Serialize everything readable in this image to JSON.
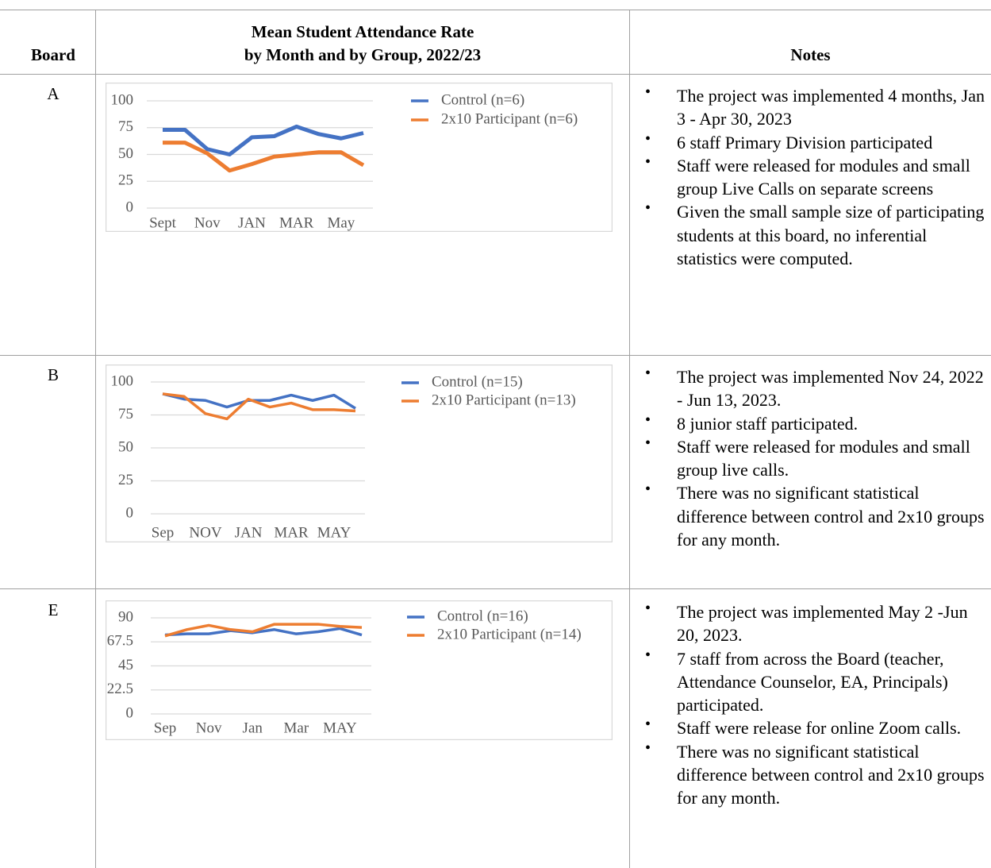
{
  "table": {
    "headers": {
      "board": "Board",
      "chart": [
        "Mean Student Attendance Rate",
        "by Month and by Group, 2022/23"
      ],
      "notes": "Notes"
    },
    "rows": [
      {
        "board": "A",
        "notes": [
          "The project was implemented 4 months, Jan 3 - Apr 30, 2023",
          "6 staff Primary Division participated",
          "Staff were released for modules and small group Live Calls on separate screens",
          "Given the small sample size of participating students at this board, no inferential statistics were computed."
        ]
      },
      {
        "board": "B",
        "notes": [
          "The project was implemented Nov 24, 2022 - Jun 13, 2023.",
          "8 junior staff participated.",
          "Staff were released for modules and small group live calls.",
          "There was no significant statistical difference between control and 2x10 groups for any month."
        ]
      },
      {
        "board": "E",
        "notes": [
          "The project was implemented May 2 -Jun 20, 2023.",
          "7 staff from across the Board (teacher, Attendance Counselor, EA, Principals) participated.",
          "Staff were release for online Zoom calls.",
          "There was no significant statistical difference between control and 2x10 groups for any month."
        ]
      }
    ]
  },
  "chart_data": [
    {
      "type": "line",
      "categories": [
        "Sept",
        null,
        "Nov",
        null,
        "JAN",
        null,
        "MAR",
        null,
        "May",
        null
      ],
      "series": [
        {
          "name": "Control (n=6)",
          "color": "#4472c4",
          "values": [
            73,
            73,
            55,
            50,
            66,
            67,
            76,
            69,
            65,
            70
          ]
        },
        {
          "name": "2x10 Participant (n=6)",
          "color": "#ed7d31",
          "values": [
            61,
            61,
            51,
            35,
            41,
            48,
            50,
            52,
            52,
            40
          ]
        }
      ],
      "ylim": [
        0,
        100
      ],
      "yticks": [
        0,
        25,
        50,
        75,
        100
      ],
      "grid": true,
      "legend": "top-right"
    },
    {
      "type": "line",
      "categories": [
        "Sep",
        null,
        "NOV",
        null,
        "JAN",
        null,
        "MAR",
        null,
        "MAY",
        null
      ],
      "series": [
        {
          "name": "Control (n=15)",
          "color": "#4472c4",
          "values": [
            91,
            87,
            86,
            81,
            86,
            86,
            90,
            86,
            90,
            80
          ]
        },
        {
          "name": "2x10 Participant (n=13)",
          "color": "#ed7d31",
          "values": [
            91,
            89,
            76,
            72,
            87,
            81,
            84,
            79,
            79,
            78
          ]
        }
      ],
      "ylim": [
        0,
        100
      ],
      "yticks": [
        0,
        25,
        50,
        75,
        100
      ],
      "grid": true,
      "legend": "top-right"
    },
    {
      "type": "line",
      "categories": [
        "Sep",
        null,
        "Nov",
        null,
        "Jan",
        null,
        "Mar",
        null,
        "MAY",
        null
      ],
      "series": [
        {
          "name": "Control (n=16)",
          "color": "#4472c4",
          "values": [
            74,
            75,
            75,
            78,
            76,
            79,
            75,
            77,
            80,
            74
          ]
        },
        {
          "name": "2x10 Participant (n=14)",
          "color": "#ed7d31",
          "values": [
            73,
            79,
            83,
            79,
            77,
            84,
            84,
            84,
            82,
            81
          ]
        }
      ],
      "ylim": [
        0,
        90
      ],
      "yticks": [
        0,
        22.5,
        45,
        67.5,
        90
      ],
      "grid": true,
      "legend": "top-right"
    }
  ]
}
